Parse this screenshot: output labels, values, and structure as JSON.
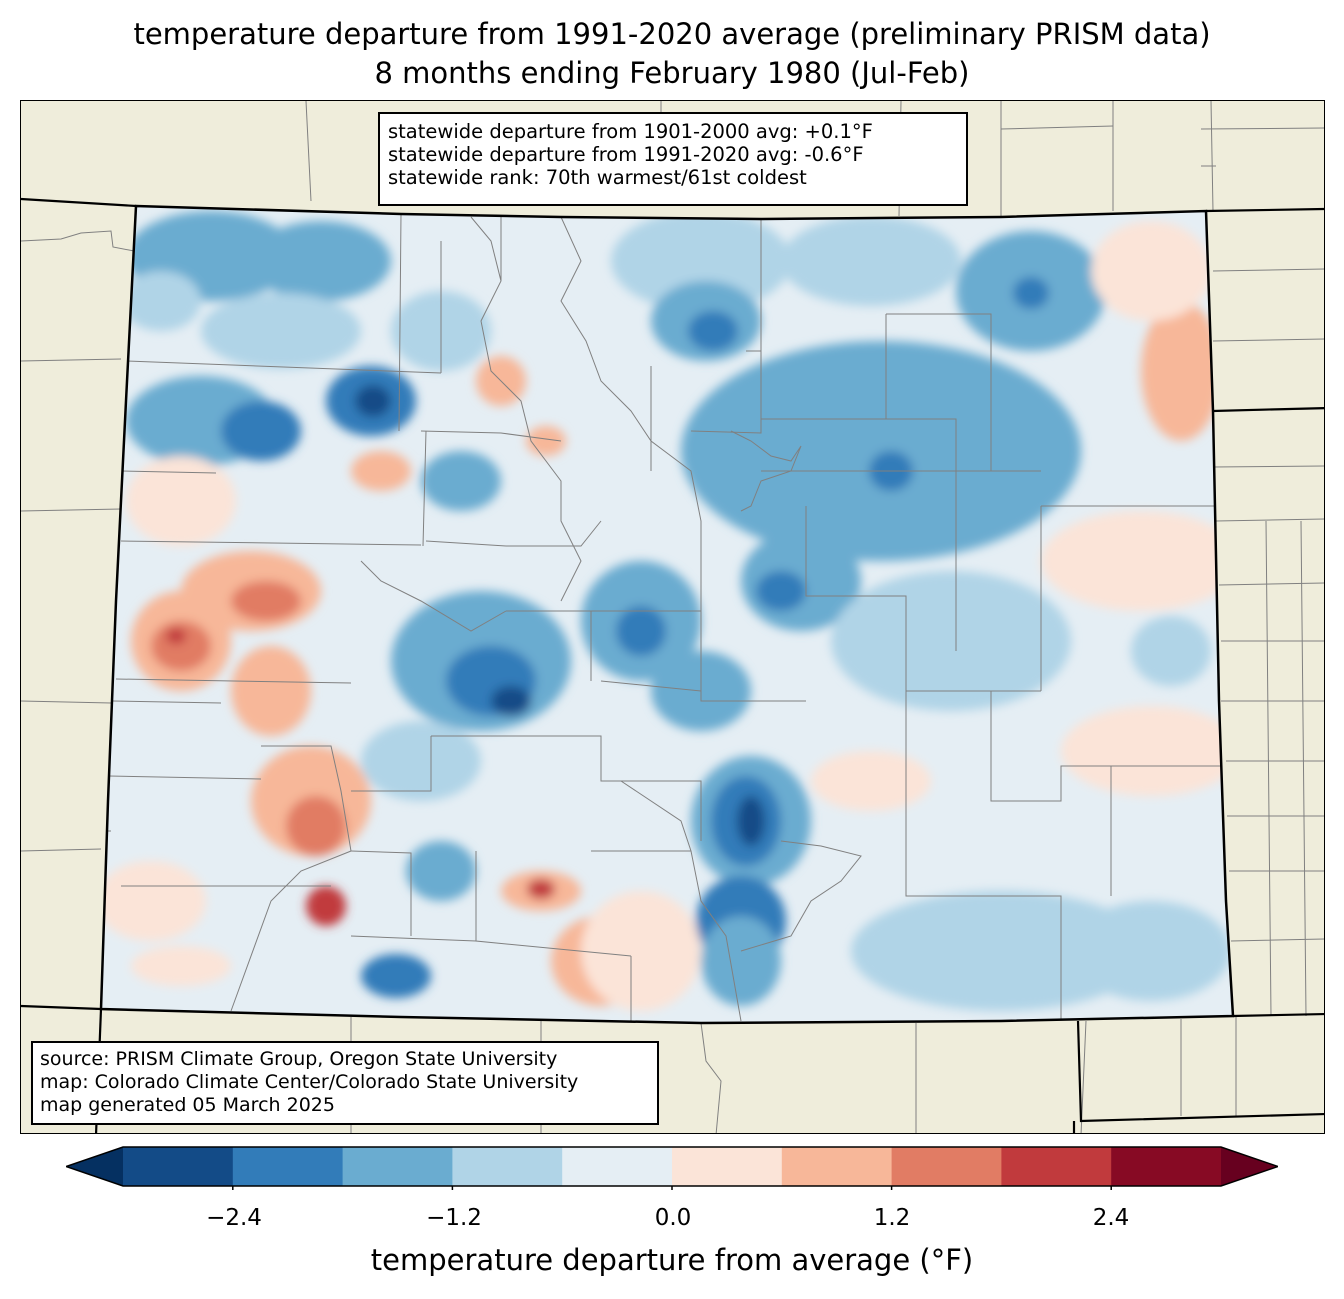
{
  "title": {
    "line1": "temperature departure from 1991-2020 average (preliminary PRISM data)",
    "line2": "8 months ending February 1980 (Jul-Feb)"
  },
  "stats": {
    "line1": "statewide departure from 1901-2000 avg: +0.1°F",
    "line2": "statewide departure from 1991-2020 avg: -0.6°F",
    "line3": "statewide rank: 70th warmest/61st coldest"
  },
  "source": {
    "line1": "source: PRISM Climate Group, Oregon State University",
    "line2": "map: Colorado Climate Center/Colorado State University",
    "line3": "map generated 05 March 2025"
  },
  "colorbar": {
    "label": "temperature departure from average (°F)",
    "ticks": [
      "−2.4",
      "−1.2",
      "0.0",
      "1.2",
      "2.4"
    ],
    "bins": [
      -3.0,
      -2.4,
      -1.8,
      -1.2,
      -0.6,
      0.0,
      0.6,
      1.2,
      1.8,
      2.4,
      3.0
    ],
    "colors": [
      "#134b87",
      "#327cb9",
      "#6aacd0",
      "#b0d4e7",
      "#e5eef4",
      "#fbe4d8",
      "#f7b799",
      "#e17c64",
      "#c13a3d",
      "#870a24"
    ],
    "extend_colors": {
      "low": "#053061",
      "high": "#67001f"
    }
  },
  "map_colors": {
    "land": "#efeddb",
    "state_border": "#000000",
    "county_border": "#808080"
  }
}
